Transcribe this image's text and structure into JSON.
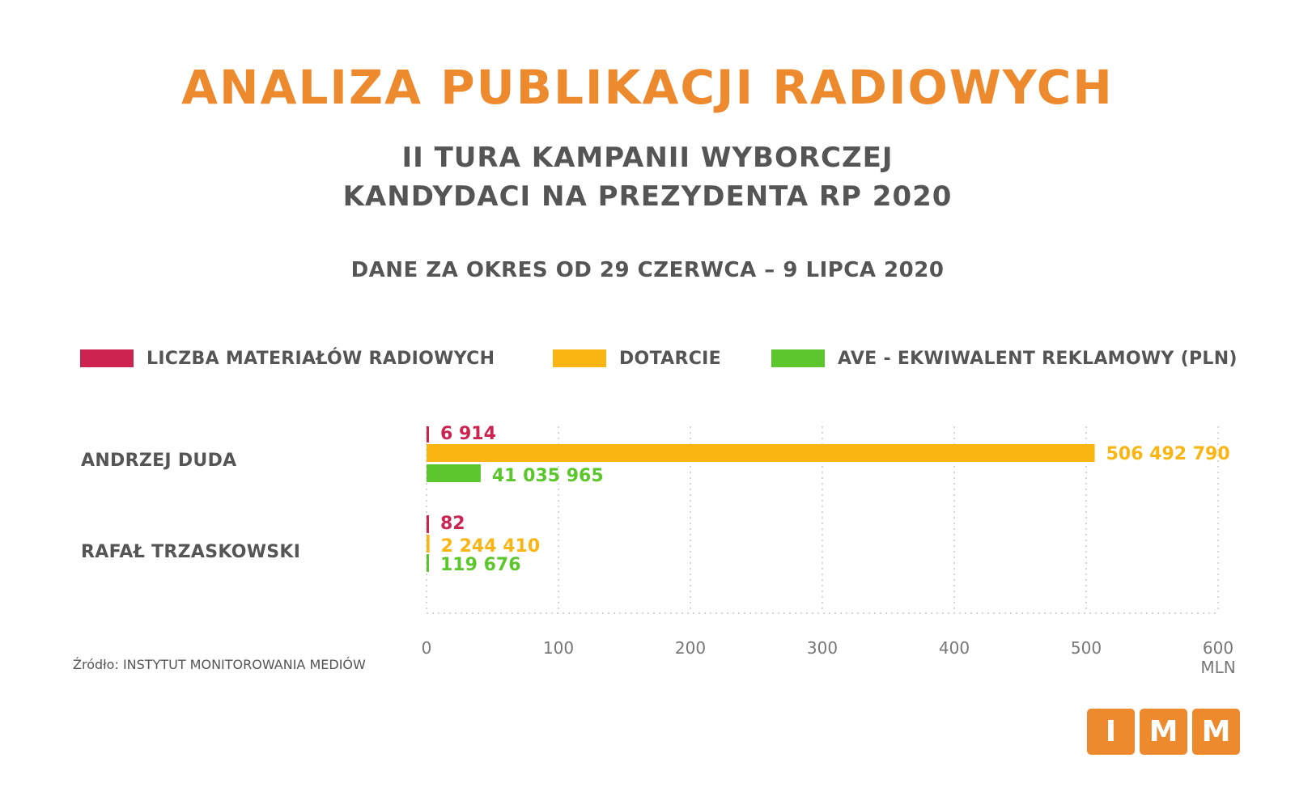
{
  "title": "ANALIZA PUBLIKACJI RADIOWYCH",
  "subtitle_line1": "II TURA KAMPANII WYBORCZEJ",
  "subtitle_line2": "KANDYDACI NA PREZYDENTA RP 2020",
  "period": "DANE ZA OKRES OD 29 CZERWCA – 9 LIPCA 2020",
  "legend": [
    {
      "label": "LICZBA MATERIAŁÓW RADIOWYCH",
      "color": "#cc2350"
    },
    {
      "label": "DOTARCIE",
      "color": "#fbb512"
    },
    {
      "label": "AVE - EKWIWALENT REKLAMOWY (PLN)",
      "color": "#5cc72c"
    }
  ],
  "source": "Źródło: INSTYTUT MONITOROWANIA MEDIÓW",
  "logo": [
    "I",
    "M",
    "M"
  ],
  "chart_data": {
    "type": "bar",
    "orientation": "horizontal",
    "categories": [
      "ANDRZEJ DUDA",
      "RAFAŁ TRZASKOWSKI"
    ],
    "series": [
      {
        "name": "LICZBA MATERIAŁÓW RADIOWYCH",
        "color": "#cc2350",
        "values": [
          6914,
          82
        ],
        "value_labels": [
          "6 914",
          "82"
        ]
      },
      {
        "name": "DOTARCIE",
        "color": "#fbb512",
        "values": [
          506492790,
          2244410
        ],
        "value_labels": [
          "506 492 790",
          "2 244 410"
        ]
      },
      {
        "name": "AVE - EKWIWALENT REKLAMOWY (PLN)",
        "color": "#5cc72c",
        "values": [
          41035965,
          119676
        ],
        "value_labels": [
          "41 035 965",
          "119 676"
        ]
      }
    ],
    "x_ticks": [
      0,
      100,
      200,
      300,
      400,
      500,
      600
    ],
    "x_tick_labels": [
      "0",
      "100",
      "200",
      "300",
      "400",
      "500",
      "600"
    ],
    "x_unit_label": "MLN",
    "xlim": [
      0,
      600
    ],
    "grid": true,
    "legend_position": "top"
  }
}
